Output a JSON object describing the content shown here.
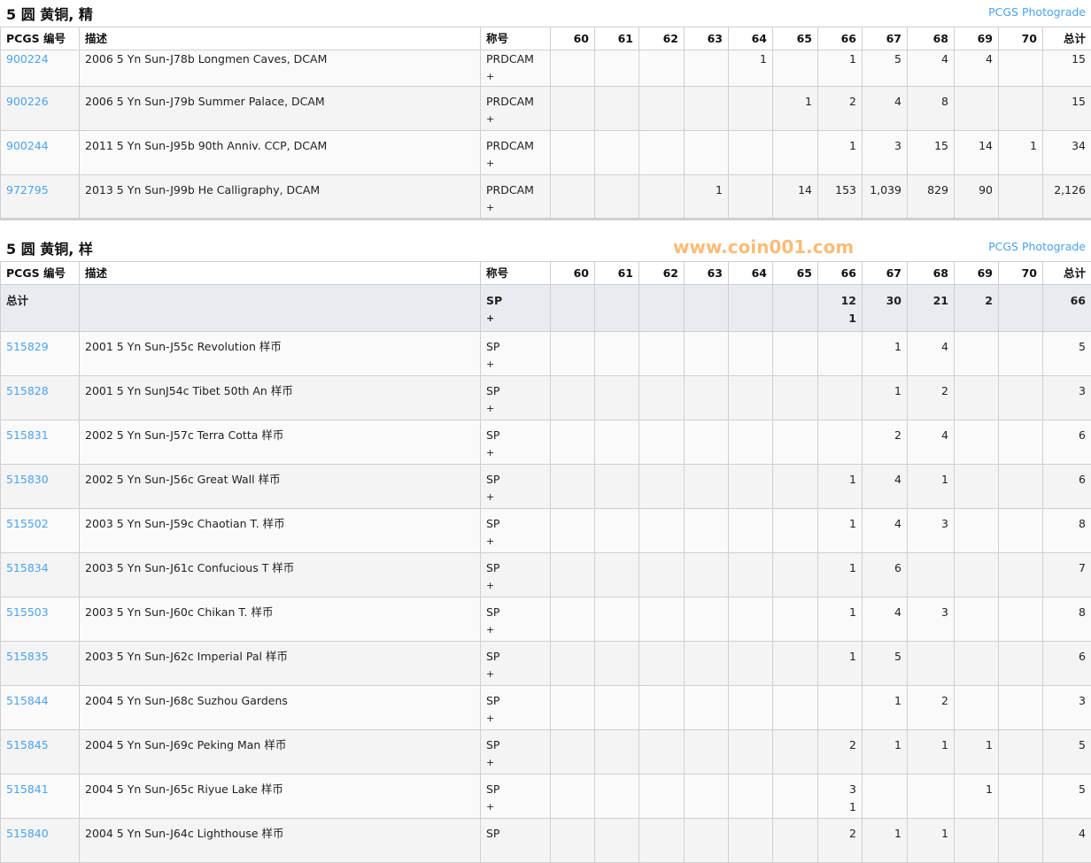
{
  "grades": [
    "60",
    "61",
    "62",
    "63",
    "64",
    "65",
    "66",
    "67",
    "68",
    "69",
    "70"
  ],
  "headers": {
    "pcgs": "PCGS 编号",
    "desc": "描述",
    "designation": "称号",
    "total": "总计"
  },
  "sections": [
    {
      "title": "5 圆 黄铜, 精",
      "link": "PCGS Photograde",
      "rows": [
        {
          "id": "900224",
          "desc": "2006 5 Yn Sun-J78b Longmen Caves, DCAM",
          "des": "PRDCAM",
          "plus": "+",
          "g": [
            "",
            "",
            "",
            "",
            "1",
            "",
            "1",
            "5",
            "4",
            "4",
            ""
          ],
          "total": "15"
        },
        {
          "id": "900226",
          "desc": "2006 5 Yn Sun-J79b Summer Palace, DCAM",
          "des": "PRDCAM",
          "plus": "+",
          "g": [
            "",
            "",
            "",
            "",
            "",
            "1",
            "2",
            "4",
            "8",
            "",
            ""
          ],
          "total": "15"
        },
        {
          "id": "900244",
          "desc": "2011 5 Yn Sun-J95b 90th Anniv. CCP, DCAM",
          "des": "PRDCAM",
          "plus": "+",
          "g": [
            "",
            "",
            "",
            "",
            "",
            "",
            "1",
            "3",
            "15",
            "14",
            "1"
          ],
          "total": "34"
        },
        {
          "id": "972795",
          "desc": "2013 5 Yn Sun-J99b He Calligraphy, DCAM",
          "des": "PRDCAM",
          "plus": "+",
          "g": [
            "",
            "",
            "",
            "1",
            "",
            "14",
            "153",
            "1,039",
            "829",
            "90",
            ""
          ],
          "total": "2,126"
        }
      ]
    },
    {
      "title": "5 圆 黄铜, 样",
      "link": "PCGS Photograde",
      "totals": {
        "label": "总计",
        "des": "SP",
        "plus": "+",
        "g": [
          "",
          "",
          "",
          "",
          "",
          "",
          "12\n1",
          "30",
          "21",
          "2",
          ""
        ],
        "total": "66"
      },
      "rows": [
        {
          "id": "515829",
          "desc": "2001 5 Yn Sun-J55c Revolution 样币",
          "des": "SP",
          "plus": "+",
          "g": [
            "",
            "",
            "",
            "",
            "",
            "",
            "",
            "1",
            "4",
            "",
            ""
          ],
          "total": "5"
        },
        {
          "id": "515828",
          "desc": "2001 5 Yn SunJ54c Tibet 50th An 样币",
          "des": "SP",
          "plus": "+",
          "g": [
            "",
            "",
            "",
            "",
            "",
            "",
            "",
            "1",
            "2",
            "",
            ""
          ],
          "total": "3"
        },
        {
          "id": "515831",
          "desc": "2002 5 Yn Sun-J57c Terra Cotta 样币",
          "des": "SP",
          "plus": "+",
          "g": [
            "",
            "",
            "",
            "",
            "",
            "",
            "",
            "2",
            "4",
            "",
            ""
          ],
          "total": "6"
        },
        {
          "id": "515830",
          "desc": "2002 5 Yn Sun-J56c Great Wall 样币",
          "des": "SP",
          "plus": "+",
          "g": [
            "",
            "",
            "",
            "",
            "",
            "",
            "1",
            "4",
            "1",
            "",
            ""
          ],
          "total": "6"
        },
        {
          "id": "515502",
          "desc": "2003 5 Yn Sun-J59c Chaotian T. 样币",
          "des": "SP",
          "plus": "+",
          "g": [
            "",
            "",
            "",
            "",
            "",
            "",
            "1",
            "4",
            "3",
            "",
            ""
          ],
          "total": "8"
        },
        {
          "id": "515834",
          "desc": "2003 5 Yn Sun-J61c Confucious T 样币",
          "des": "SP",
          "plus": "+",
          "g": [
            "",
            "",
            "",
            "",
            "",
            "",
            "1",
            "6",
            "",
            "",
            ""
          ],
          "total": "7"
        },
        {
          "id": "515503",
          "desc": "2003 5 Yn Sun-J60c Chikan T. 样币",
          "des": "SP",
          "plus": "+",
          "g": [
            "",
            "",
            "",
            "",
            "",
            "",
            "1",
            "4",
            "3",
            "",
            ""
          ],
          "total": "8"
        },
        {
          "id": "515835",
          "desc": "2003 5 Yn Sun-J62c Imperial Pal 样币",
          "des": "SP",
          "plus": "+",
          "g": [
            "",
            "",
            "",
            "",
            "",
            "",
            "1",
            "5",
            "",
            "",
            ""
          ],
          "total": "6"
        },
        {
          "id": "515844",
          "desc": "2004 5 Yn Sun-J68c Suzhou Gardens",
          "des": "SP",
          "plus": "+",
          "g": [
            "",
            "",
            "",
            "",
            "",
            "",
            "",
            "1",
            "2",
            "",
            ""
          ],
          "total": "3"
        },
        {
          "id": "515845",
          "desc": "2004 5 Yn Sun-J69c Peking Man 样币",
          "des": "SP",
          "plus": "+",
          "g": [
            "",
            "",
            "",
            "",
            "",
            "",
            "2",
            "1",
            "1",
            "1",
            ""
          ],
          "total": "5"
        },
        {
          "id": "515841",
          "desc": "2004 5 Yn Sun-J65c Riyue Lake 样币",
          "des": "SP",
          "plus": "+",
          "g": [
            "",
            "",
            "",
            "",
            "",
            "",
            "3\n1",
            "",
            "",
            "1",
            ""
          ],
          "total": "5"
        },
        {
          "id": "515840",
          "desc": "2004 5 Yn Sun-J64c Lighthouse 样币",
          "des": "SP",
          "plus": "",
          "g": [
            "",
            "",
            "",
            "",
            "",
            "",
            "2",
            "1",
            "1",
            "",
            ""
          ],
          "total": "4"
        }
      ]
    }
  ],
  "watermark": "www.coin001.com"
}
